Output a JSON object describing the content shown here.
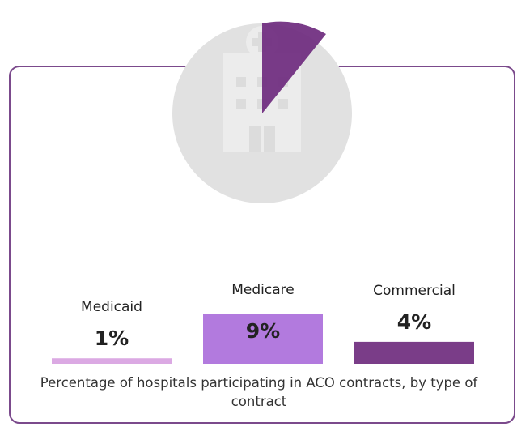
{
  "chart_data": {
    "type": "bar",
    "categories": [
      "Medicaid",
      "Medicare",
      "Commercial"
    ],
    "values": [
      1,
      9,
      4
    ],
    "value_labels": [
      "1%",
      "9%",
      "4%"
    ],
    "colors": [
      "#dba9e3",
      "#b27ade",
      "#7a3d88"
    ],
    "caption": "Percentage of hospitals participating in ACO contracts, by type of contract"
  }
}
